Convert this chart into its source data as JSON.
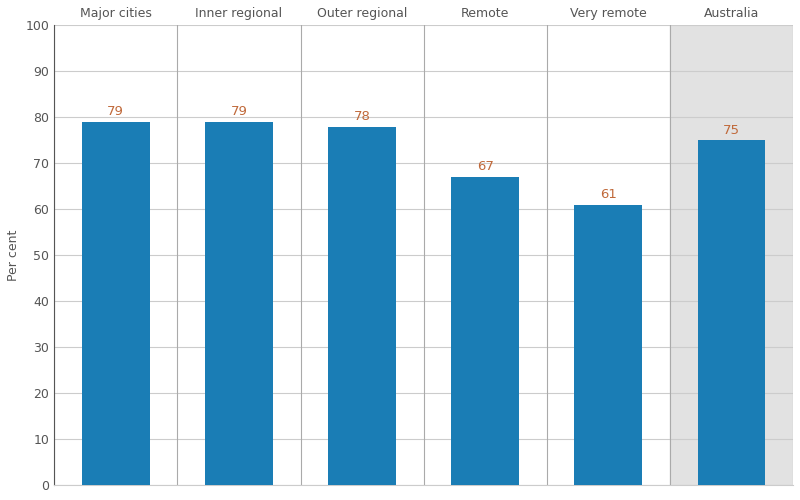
{
  "categories": [
    "Major cities",
    "Inner regional",
    "Outer regional",
    "Remote",
    "Very remote",
    "Australia"
  ],
  "values": [
    79,
    79,
    78,
    67,
    61,
    75
  ],
  "bar_color": "#1a7db5",
  "australia_panel_color": "#e2e2e2",
  "label_color": "#c0693a",
  "ylabel": "Per cent",
  "ylim": [
    0,
    100
  ],
  "yticks": [
    0,
    10,
    20,
    30,
    40,
    50,
    60,
    70,
    80,
    90,
    100
  ],
  "divider_color": "#aaaaaa",
  "background_color": "#ffffff",
  "bar_width": 0.55,
  "label_fontsize": 9.5,
  "axis_label_fontsize": 9,
  "category_fontsize": 9,
  "tick_fontsize": 9,
  "tick_color": "#555555",
  "spine_color": "#555555"
}
